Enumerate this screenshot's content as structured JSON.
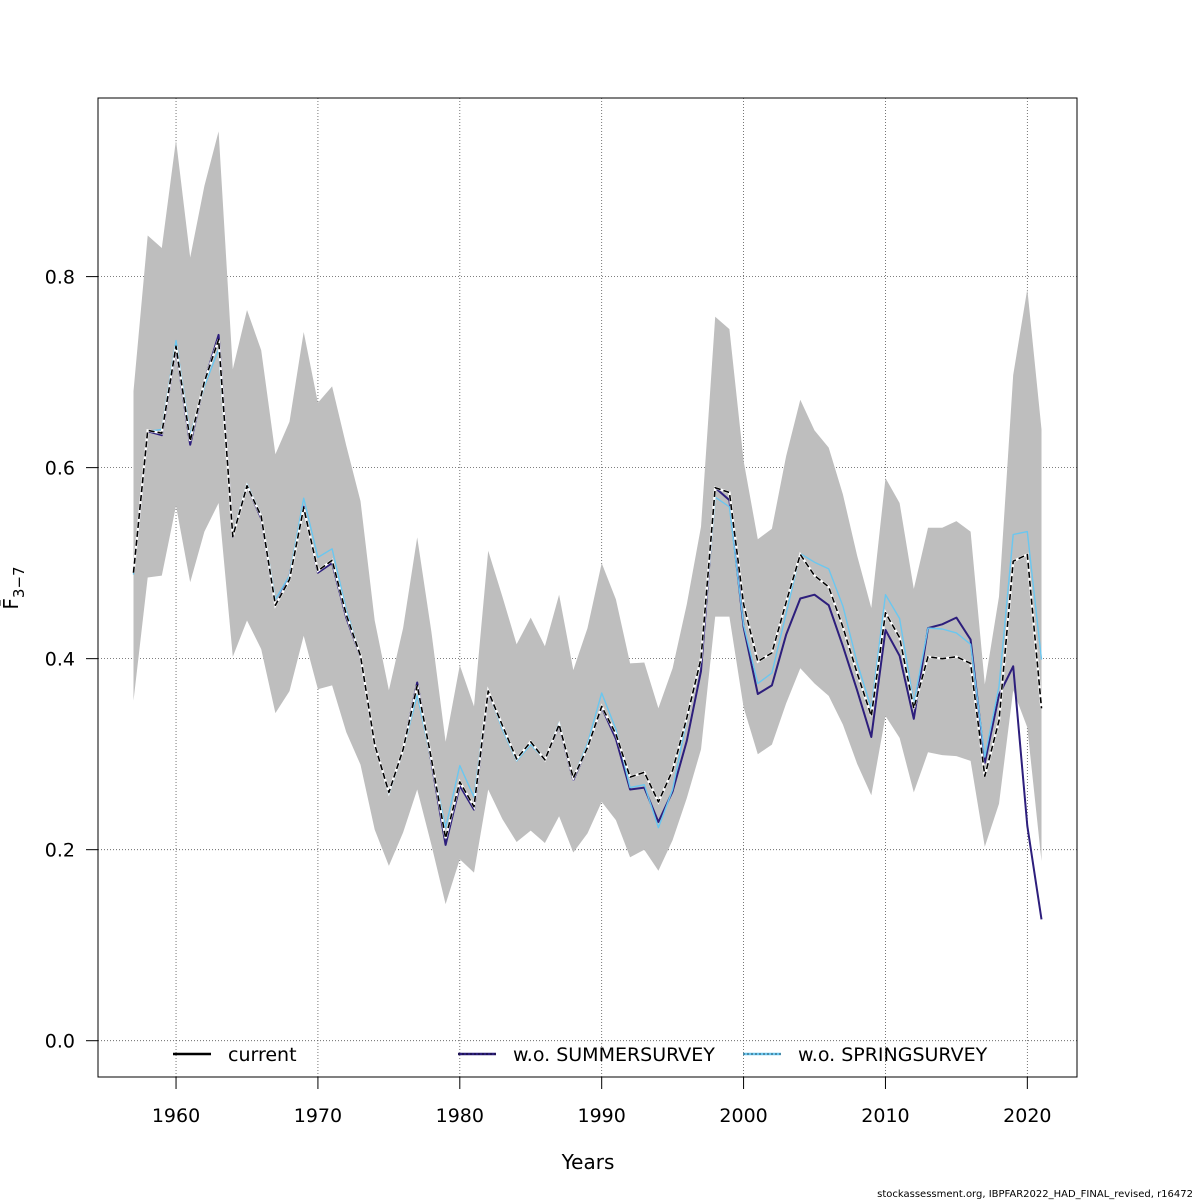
{
  "chart_data": {
    "type": "line",
    "title": "",
    "xlabel": "Years",
    "ylabel": "F̄",
    "ylabel_sub": "3−7",
    "xlim": [
      1954.5,
      2023.5
    ],
    "ylim": [
      -0.038,
      0.987
    ],
    "x_ticks": [
      1960,
      1970,
      1980,
      1990,
      2000,
      2010,
      2020
    ],
    "y_ticks": [
      0.0,
      0.2,
      0.4,
      0.6,
      0.8
    ],
    "y_tick_labels": [
      "0.0",
      "0.2",
      "0.4",
      "0.6",
      "0.8"
    ],
    "grid": true,
    "legend_position": "bottom",
    "x": [
      1957,
      1958,
      1959,
      1960,
      1961,
      1962,
      1963,
      1964,
      1965,
      1966,
      1967,
      1968,
      1969,
      1970,
      1971,
      1972,
      1973,
      1974,
      1975,
      1976,
      1977,
      1978,
      1979,
      1980,
      1981,
      1982,
      1983,
      1984,
      1985,
      1986,
      1987,
      1988,
      1989,
      1990,
      1991,
      1992,
      1993,
      1994,
      1995,
      1996,
      1997,
      1998,
      1999,
      2000,
      2001,
      2002,
      2003,
      2004,
      2005,
      2006,
      2007,
      2008,
      2009,
      2010,
      2011,
      2012,
      2013,
      2014,
      2015,
      2016,
      2017,
      2018,
      2019,
      2020,
      2021
    ],
    "band": {
      "color": "#bebebe",
      "upper": [
        0.68,
        0.843,
        0.83,
        0.943,
        0.82,
        0.895,
        0.952,
        0.703,
        0.765,
        0.723,
        0.614,
        0.648,
        0.742,
        0.668,
        0.685,
        0.623,
        0.565,
        0.44,
        0.367,
        0.432,
        0.527,
        0.428,
        0.313,
        0.393,
        0.35,
        0.513,
        0.465,
        0.415,
        0.443,
        0.413,
        0.467,
        0.388,
        0.432,
        0.5,
        0.462,
        0.395,
        0.396,
        0.348,
        0.39,
        0.457,
        0.538,
        0.758,
        0.745,
        0.607,
        0.525,
        0.536,
        0.612,
        0.671,
        0.639,
        0.621,
        0.572,
        0.508,
        0.453,
        0.589,
        0.563,
        0.473,
        0.537,
        0.537,
        0.544,
        0.533,
        0.373,
        0.465,
        0.697,
        0.787,
        0.64
      ],
      "lower": [
        0.356,
        0.485,
        0.487,
        0.56,
        0.48,
        0.533,
        0.563,
        0.402,
        0.44,
        0.41,
        0.343,
        0.366,
        0.424,
        0.368,
        0.372,
        0.323,
        0.289,
        0.221,
        0.183,
        0.218,
        0.263,
        0.205,
        0.143,
        0.19,
        0.176,
        0.263,
        0.232,
        0.208,
        0.22,
        0.207,
        0.235,
        0.197,
        0.217,
        0.25,
        0.231,
        0.192,
        0.2,
        0.178,
        0.21,
        0.254,
        0.305,
        0.444,
        0.444,
        0.349,
        0.3,
        0.31,
        0.353,
        0.39,
        0.374,
        0.361,
        0.331,
        0.29,
        0.257,
        0.34,
        0.317,
        0.26,
        0.302,
        0.299,
        0.298,
        0.293,
        0.203,
        0.248,
        0.367,
        0.328,
        0.188
      ]
    },
    "series": [
      {
        "name": "current",
        "color": "#000000",
        "dash": "6,3",
        "width": 1.6,
        "values": [
          0.49,
          0.639,
          0.636,
          0.727,
          0.628,
          0.69,
          0.734,
          0.528,
          0.581,
          0.549,
          0.456,
          0.483,
          0.558,
          0.492,
          0.503,
          0.446,
          0.403,
          0.31,
          0.26,
          0.305,
          0.372,
          0.295,
          0.212,
          0.271,
          0.245,
          0.366,
          0.33,
          0.295,
          0.313,
          0.294,
          0.331,
          0.275,
          0.307,
          0.35,
          0.321,
          0.276,
          0.281,
          0.25,
          0.283,
          0.338,
          0.4,
          0.579,
          0.574,
          0.457,
          0.397,
          0.406,
          0.459,
          0.509,
          0.487,
          0.475,
          0.433,
          0.385,
          0.34,
          0.448,
          0.422,
          0.348,
          0.402,
          0.4,
          0.402,
          0.395,
          0.277,
          0.335,
          0.502,
          0.509,
          0.348
        ]
      },
      {
        "name": "w.o. SUMMERSURVEY",
        "color": "#2d1e7c",
        "dash": "",
        "width": 2.0,
        "values": [
          0.49,
          0.638,
          0.634,
          0.725,
          0.624,
          0.69,
          0.739,
          0.528,
          0.581,
          0.547,
          0.456,
          0.486,
          0.559,
          0.49,
          0.5,
          0.443,
          0.402,
          0.31,
          0.26,
          0.305,
          0.375,
          0.292,
          0.205,
          0.267,
          0.242,
          0.365,
          0.33,
          0.294,
          0.312,
          0.294,
          0.33,
          0.273,
          0.307,
          0.349,
          0.316,
          0.263,
          0.265,
          0.229,
          0.261,
          0.314,
          0.387,
          0.579,
          0.566,
          0.433,
          0.363,
          0.372,
          0.425,
          0.463,
          0.467,
          0.456,
          0.413,
          0.367,
          0.318,
          0.43,
          0.403,
          0.337,
          0.432,
          0.436,
          0.443,
          0.42,
          0.291,
          0.362,
          0.392,
          0.225,
          0.127
        ]
      },
      {
        "name": "w.o. SPRINGSURVEY",
        "color": "#6ac7f0",
        "dash": "",
        "width": 1.4,
        "values": [
          0.488,
          0.638,
          0.64,
          0.733,
          0.634,
          0.685,
          0.724,
          0.53,
          0.583,
          0.55,
          0.462,
          0.487,
          0.568,
          0.506,
          0.515,
          0.451,
          0.403,
          0.311,
          0.258,
          0.304,
          0.362,
          0.293,
          0.223,
          0.288,
          0.255,
          0.366,
          0.326,
          0.293,
          0.31,
          0.294,
          0.333,
          0.275,
          0.311,
          0.364,
          0.326,
          0.265,
          0.268,
          0.223,
          0.263,
          0.336,
          0.398,
          0.569,
          0.559,
          0.435,
          0.374,
          0.385,
          0.447,
          0.51,
          0.501,
          0.494,
          0.455,
          0.396,
          0.348,
          0.467,
          0.442,
          0.353,
          0.432,
          0.431,
          0.427,
          0.415,
          0.297,
          0.371,
          0.53,
          0.533,
          0.399
        ]
      }
    ],
    "legend": [
      {
        "label": "current",
        "color": "#000000"
      },
      {
        "label": "w.o. SUMMERSURVEY",
        "color": "#2d1e7c"
      },
      {
        "label": "w.o. SPRINGSURVEY",
        "color": "#6ac7f0"
      }
    ]
  },
  "footer": "stockassessment.org, IBPFAR2022_HAD_FINAL_revised, r16472"
}
